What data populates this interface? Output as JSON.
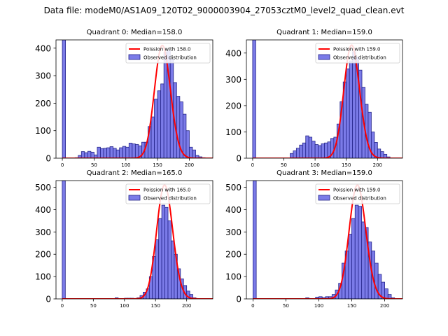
{
  "figure_title": "Data file: modeM0/AS1A09_120T02_9000003904_27053cztM0_level2_quad_clean.evt",
  "colors": {
    "bar_fill": "#7b7be8",
    "bar_edge": "#24248a",
    "poisson_line": "#ff0000",
    "axis": "#000000"
  },
  "legend": {
    "observed_label": "Observed distribution"
  },
  "chart_data": [
    {
      "type": "bar",
      "title": "Quadrant 0: Median=158.0",
      "poisson_label": "Poission with 158.0",
      "legend_position": "top-right",
      "xlim": [
        -10,
        237
      ],
      "ylim": [
        0,
        430
      ],
      "xticks": [
        0,
        50,
        100,
        150,
        200
      ],
      "yticks": [
        0,
        100,
        200,
        300,
        400
      ],
      "spike": {
        "x": 0,
        "value": 430
      },
      "bin_width": 5,
      "bins_start": [
        20,
        25,
        30,
        35,
        40,
        45,
        50,
        55,
        60,
        65,
        70,
        75,
        80,
        85,
        90,
        95,
        100,
        105,
        110,
        115,
        120,
        125,
        130,
        135,
        140,
        145,
        150,
        155,
        160,
        165,
        170,
        175,
        180,
        185,
        190,
        195,
        200,
        205,
        210,
        215,
        220
      ],
      "values": [
        2,
        10,
        24,
        20,
        25,
        22,
        12,
        40,
        35,
        36,
        38,
        42,
        36,
        30,
        38,
        43,
        40,
        55,
        52,
        50,
        45,
        58,
        58,
        115,
        150,
        215,
        245,
        270,
        385,
        390,
        360,
        275,
        225,
        205,
        160,
        100,
        40,
        30,
        10,
        5,
        2
      ],
      "poisson_mean": 158.0,
      "poisson_peak": 410
    },
    {
      "type": "bar",
      "title": "Quadrant 1: Median=159.0",
      "poisson_label": "Poission with 159.0",
      "legend_position": "top-right",
      "xlim": [
        -10,
        240
      ],
      "ylim": [
        0,
        450
      ],
      "xticks": [
        0,
        50,
        100,
        150,
        200
      ],
      "yticks": [
        0,
        100,
        200,
        300,
        400
      ],
      "spike": {
        "x": 0,
        "value": 450
      },
      "bin_width": 5,
      "bins_start": [
        60,
        65,
        70,
        75,
        80,
        85,
        90,
        95,
        100,
        105,
        110,
        115,
        120,
        125,
        130,
        135,
        140,
        145,
        150,
        155,
        160,
        165,
        170,
        175,
        180,
        185,
        190,
        195,
        200,
        205,
        210,
        215
      ],
      "values": [
        18,
        28,
        38,
        50,
        58,
        85,
        80,
        65,
        52,
        48,
        55,
        58,
        62,
        75,
        80,
        130,
        215,
        290,
        340,
        370,
        405,
        385,
        335,
        270,
        205,
        175,
        100,
        60,
        35,
        25,
        15,
        5
      ],
      "poisson_mean": 159.0,
      "poisson_peak": 430
    },
    {
      "type": "bar",
      "title": "Quadrant 2: Median=165.0",
      "poisson_label": "Poission with 165.0",
      "legend_position": "top-right",
      "xlim": [
        -10,
        242
      ],
      "ylim": [
        0,
        530
      ],
      "xticks": [
        0,
        50,
        100,
        150,
        200
      ],
      "yticks": [
        0,
        100,
        200,
        300,
        400,
        500
      ],
      "spike": {
        "x": 0,
        "value": 530
      },
      "bin_width": 5,
      "bins_start": [
        0,
        5,
        10,
        15,
        20,
        25,
        30,
        35,
        40,
        45,
        50,
        55,
        60,
        65,
        70,
        75,
        80,
        85,
        90,
        95,
        100,
        105,
        110,
        115,
        120,
        125,
        130,
        135,
        140,
        145,
        150,
        155,
        160,
        165,
        170,
        175,
        180,
        185,
        190,
        195,
        200,
        205,
        210,
        215
      ],
      "values": [
        0,
        0,
        0,
        0,
        0,
        0,
        0,
        0,
        0,
        0,
        0,
        0,
        0,
        0,
        0,
        0,
        0,
        5,
        0,
        0,
        3,
        3,
        3,
        0,
        5,
        15,
        30,
        45,
        100,
        190,
        265,
        360,
        420,
        410,
        350,
        260,
        200,
        135,
        90,
        60,
        35,
        20,
        5,
        0
      ],
      "poisson_mean": 165.0,
      "poisson_peak": 510
    },
    {
      "type": "bar",
      "title": "Quadrant 3: Median=159.0",
      "poisson_label": "Poission with 159.0",
      "legend_position": "top-right",
      "xlim": [
        -10,
        227
      ],
      "ylim": [
        0,
        530
      ],
      "xticks": [
        0,
        50,
        100,
        150,
        200
      ],
      "yticks": [
        0,
        100,
        200,
        300,
        400,
        500
      ],
      "spike": {
        "x": 0,
        "value": 530
      },
      "bin_width": 5,
      "bins_start": [
        0,
        5,
        10,
        15,
        20,
        25,
        30,
        35,
        40,
        45,
        50,
        55,
        60,
        65,
        70,
        75,
        80,
        85,
        90,
        95,
        100,
        105,
        110,
        115,
        120,
        125,
        130,
        135,
        140,
        145,
        150,
        155,
        160,
        165,
        170,
        175,
        180,
        185,
        190,
        195,
        200,
        205,
        210
      ],
      "values": [
        0,
        0,
        0,
        0,
        0,
        0,
        0,
        0,
        0,
        0,
        0,
        0,
        0,
        0,
        0,
        0,
        5,
        0,
        0,
        8,
        10,
        6,
        10,
        10,
        20,
        40,
        70,
        160,
        215,
        290,
        360,
        420,
        415,
        345,
        320,
        255,
        215,
        160,
        110,
        75,
        45,
        20,
        5
      ],
      "poisson_mean": 159.0,
      "poisson_peak": 510
    }
  ]
}
